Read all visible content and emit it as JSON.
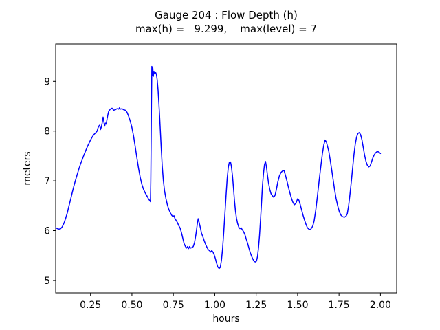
{
  "chart_data": {
    "type": "line",
    "title": "Gauge 204 : Flow Depth (h)",
    "subtitle": "max(h) =   9.299,    max(level) = 7",
    "xlabel": "hours",
    "ylabel": "meters",
    "max_h": 9.299,
    "max_level": 7,
    "line_color": "#0000ff",
    "axis_color": "#000000",
    "background": "#ffffff",
    "grid": false,
    "legend_position": "none",
    "xlim": [
      0.0396,
      2.098
    ],
    "ylim": [
      4.75,
      9.75
    ],
    "xticks": [
      0.25,
      0.5,
      0.75,
      1.0,
      1.25,
      1.5,
      1.75,
      2.0
    ],
    "xtick_labels": [
      "0.25",
      "0.50",
      "0.75",
      "1.00",
      "1.25",
      "1.50",
      "1.75",
      "2.00"
    ],
    "yticks": [
      5,
      6,
      7,
      8,
      9
    ],
    "ytick_labels": [
      "5",
      "6",
      "7",
      "8",
      "9"
    ],
    "series": [
      {
        "name": "flow-depth-h",
        "points": [
          [
            0.04,
            6.06
          ],
          [
            0.05,
            6.04
          ],
          [
            0.06,
            6.03
          ],
          [
            0.07,
            6.04
          ],
          [
            0.08,
            6.08
          ],
          [
            0.09,
            6.15
          ],
          [
            0.1,
            6.25
          ],
          [
            0.11,
            6.36
          ],
          [
            0.12,
            6.5
          ],
          [
            0.13,
            6.63
          ],
          [
            0.14,
            6.77
          ],
          [
            0.15,
            6.9
          ],
          [
            0.16,
            7.02
          ],
          [
            0.17,
            7.13
          ],
          [
            0.18,
            7.24
          ],
          [
            0.19,
            7.34
          ],
          [
            0.2,
            7.43
          ],
          [
            0.21,
            7.52
          ],
          [
            0.22,
            7.6
          ],
          [
            0.23,
            7.68
          ],
          [
            0.24,
            7.75
          ],
          [
            0.25,
            7.82
          ],
          [
            0.26,
            7.88
          ],
          [
            0.27,
            7.93
          ],
          [
            0.28,
            7.96
          ],
          [
            0.29,
            8.0
          ],
          [
            0.295,
            8.06
          ],
          [
            0.3,
            8.1
          ],
          [
            0.305,
            8.12
          ],
          [
            0.31,
            8.03
          ],
          [
            0.315,
            8.08
          ],
          [
            0.32,
            8.16
          ],
          [
            0.326,
            8.28
          ],
          [
            0.33,
            8.2
          ],
          [
            0.335,
            8.1
          ],
          [
            0.34,
            8.16
          ],
          [
            0.345,
            8.14
          ],
          [
            0.35,
            8.25
          ],
          [
            0.355,
            8.33
          ],
          [
            0.36,
            8.4
          ],
          [
            0.37,
            8.44
          ],
          [
            0.38,
            8.46
          ],
          [
            0.39,
            8.42
          ],
          [
            0.4,
            8.43
          ],
          [
            0.41,
            8.45
          ],
          [
            0.42,
            8.44
          ],
          [
            0.425,
            8.47
          ],
          [
            0.43,
            8.44
          ],
          [
            0.44,
            8.45
          ],
          [
            0.45,
            8.43
          ],
          [
            0.46,
            8.42
          ],
          [
            0.47,
            8.38
          ],
          [
            0.48,
            8.3
          ],
          [
            0.49,
            8.2
          ],
          [
            0.5,
            8.07
          ],
          [
            0.51,
            7.9
          ],
          [
            0.52,
            7.68
          ],
          [
            0.53,
            7.46
          ],
          [
            0.54,
            7.25
          ],
          [
            0.55,
            7.07
          ],
          [
            0.56,
            6.93
          ],
          [
            0.57,
            6.83
          ],
          [
            0.58,
            6.76
          ],
          [
            0.59,
            6.7
          ],
          [
            0.6,
            6.64
          ],
          [
            0.608,
            6.6
          ],
          [
            0.612,
            6.58
          ],
          [
            0.614,
            7.0
          ],
          [
            0.616,
            7.8
          ],
          [
            0.618,
            8.6
          ],
          [
            0.62,
            9.3
          ],
          [
            0.623,
            9.12
          ],
          [
            0.626,
            9.27
          ],
          [
            0.629,
            9.1
          ],
          [
            0.633,
            9.2
          ],
          [
            0.638,
            9.16
          ],
          [
            0.643,
            9.18
          ],
          [
            0.648,
            9.14
          ],
          [
            0.653,
            9.02
          ],
          [
            0.658,
            8.82
          ],
          [
            0.663,
            8.55
          ],
          [
            0.668,
            8.25
          ],
          [
            0.673,
            7.92
          ],
          [
            0.678,
            7.6
          ],
          [
            0.683,
            7.3
          ],
          [
            0.69,
            7.0
          ],
          [
            0.697,
            6.8
          ],
          [
            0.705,
            6.65
          ],
          [
            0.713,
            6.53
          ],
          [
            0.721,
            6.44
          ],
          [
            0.73,
            6.37
          ],
          [
            0.74,
            6.31
          ],
          [
            0.748,
            6.28
          ],
          [
            0.754,
            6.3
          ],
          [
            0.76,
            6.24
          ],
          [
            0.768,
            6.2
          ],
          [
            0.775,
            6.16
          ],
          [
            0.783,
            6.1
          ],
          [
            0.791,
            6.05
          ],
          [
            0.799,
            5.96
          ],
          [
            0.807,
            5.85
          ],
          [
            0.815,
            5.74
          ],
          [
            0.823,
            5.68
          ],
          [
            0.83,
            5.65
          ],
          [
            0.836,
            5.68
          ],
          [
            0.842,
            5.64
          ],
          [
            0.848,
            5.68
          ],
          [
            0.855,
            5.65
          ],
          [
            0.862,
            5.66
          ],
          [
            0.87,
            5.68
          ],
          [
            0.878,
            5.76
          ],
          [
            0.886,
            5.92
          ],
          [
            0.894,
            6.12
          ],
          [
            0.9,
            6.24
          ],
          [
            0.906,
            6.16
          ],
          [
            0.913,
            6.06
          ],
          [
            0.92,
            5.95
          ],
          [
            0.928,
            5.88
          ],
          [
            0.936,
            5.8
          ],
          [
            0.944,
            5.73
          ],
          [
            0.952,
            5.67
          ],
          [
            0.96,
            5.62
          ],
          [
            0.968,
            5.6
          ],
          [
            0.975,
            5.57
          ],
          [
            0.982,
            5.6
          ],
          [
            0.989,
            5.57
          ],
          [
            0.996,
            5.52
          ],
          [
            1.003,
            5.45
          ],
          [
            1.01,
            5.36
          ],
          [
            1.018,
            5.27
          ],
          [
            1.026,
            5.24
          ],
          [
            1.033,
            5.26
          ],
          [
            1.04,
            5.4
          ],
          [
            1.047,
            5.62
          ],
          [
            1.054,
            5.95
          ],
          [
            1.061,
            6.32
          ],
          [
            1.068,
            6.7
          ],
          [
            1.075,
            7.05
          ],
          [
            1.082,
            7.28
          ],
          [
            1.088,
            7.37
          ],
          [
            1.095,
            7.38
          ],
          [
            1.1,
            7.3
          ],
          [
            1.107,
            7.1
          ],
          [
            1.113,
            6.85
          ],
          [
            1.119,
            6.6
          ],
          [
            1.125,
            6.4
          ],
          [
            1.131,
            6.25
          ],
          [
            1.138,
            6.14
          ],
          [
            1.145,
            6.07
          ],
          [
            1.152,
            6.04
          ],
          [
            1.159,
            6.06
          ],
          [
            1.166,
            6.02
          ],
          [
            1.174,
            5.98
          ],
          [
            1.182,
            5.92
          ],
          [
            1.19,
            5.83
          ],
          [
            1.198,
            5.75
          ],
          [
            1.206,
            5.65
          ],
          [
            1.214,
            5.56
          ],
          [
            1.222,
            5.49
          ],
          [
            1.23,
            5.43
          ],
          [
            1.238,
            5.38
          ],
          [
            1.246,
            5.37
          ],
          [
            1.252,
            5.39
          ],
          [
            1.258,
            5.48
          ],
          [
            1.264,
            5.65
          ],
          [
            1.27,
            5.9
          ],
          [
            1.276,
            6.2
          ],
          [
            1.282,
            6.55
          ],
          [
            1.288,
            6.9
          ],
          [
            1.294,
            7.15
          ],
          [
            1.3,
            7.32
          ],
          [
            1.306,
            7.39
          ],
          [
            1.312,
            7.28
          ],
          [
            1.318,
            7.12
          ],
          [
            1.324,
            6.97
          ],
          [
            1.332,
            6.83
          ],
          [
            1.34,
            6.74
          ],
          [
            1.348,
            6.7
          ],
          [
            1.356,
            6.67
          ],
          [
            1.364,
            6.71
          ],
          [
            1.372,
            6.83
          ],
          [
            1.38,
            6.97
          ],
          [
            1.39,
            7.1
          ],
          [
            1.4,
            7.17
          ],
          [
            1.41,
            7.2
          ],
          [
            1.418,
            7.21
          ],
          [
            1.426,
            7.12
          ],
          [
            1.434,
            7.02
          ],
          [
            1.442,
            6.91
          ],
          [
            1.45,
            6.8
          ],
          [
            1.46,
            6.68
          ],
          [
            1.47,
            6.58
          ],
          [
            1.48,
            6.52
          ],
          [
            1.49,
            6.55
          ],
          [
            1.5,
            6.64
          ],
          [
            1.508,
            6.61
          ],
          [
            1.516,
            6.52
          ],
          [
            1.524,
            6.42
          ],
          [
            1.532,
            6.32
          ],
          [
            1.541,
            6.22
          ],
          [
            1.55,
            6.13
          ],
          [
            1.559,
            6.06
          ],
          [
            1.568,
            6.03
          ],
          [
            1.577,
            6.02
          ],
          [
            1.586,
            6.06
          ],
          [
            1.592,
            6.1
          ],
          [
            1.6,
            6.2
          ],
          [
            1.61,
            6.42
          ],
          [
            1.62,
            6.7
          ],
          [
            1.63,
            7.0
          ],
          [
            1.64,
            7.28
          ],
          [
            1.65,
            7.55
          ],
          [
            1.658,
            7.72
          ],
          [
            1.666,
            7.82
          ],
          [
            1.674,
            7.78
          ],
          [
            1.68,
            7.7
          ],
          [
            1.688,
            7.6
          ],
          [
            1.696,
            7.44
          ],
          [
            1.704,
            7.26
          ],
          [
            1.712,
            7.08
          ],
          [
            1.722,
            6.85
          ],
          [
            1.732,
            6.65
          ],
          [
            1.742,
            6.5
          ],
          [
            1.752,
            6.38
          ],
          [
            1.762,
            6.31
          ],
          [
            1.772,
            6.28
          ],
          [
            1.782,
            6.27
          ],
          [
            1.792,
            6.29
          ],
          [
            1.8,
            6.34
          ],
          [
            1.808,
            6.5
          ],
          [
            1.816,
            6.72
          ],
          [
            1.824,
            6.98
          ],
          [
            1.832,
            7.25
          ],
          [
            1.84,
            7.52
          ],
          [
            1.848,
            7.74
          ],
          [
            1.856,
            7.88
          ],
          [
            1.864,
            7.95
          ],
          [
            1.872,
            7.97
          ],
          [
            1.88,
            7.93
          ],
          [
            1.888,
            7.83
          ],
          [
            1.896,
            7.68
          ],
          [
            1.904,
            7.52
          ],
          [
            1.912,
            7.4
          ],
          [
            1.92,
            7.32
          ],
          [
            1.93,
            7.28
          ],
          [
            1.938,
            7.3
          ],
          [
            1.946,
            7.38
          ],
          [
            1.954,
            7.46
          ],
          [
            1.962,
            7.52
          ],
          [
            1.97,
            7.56
          ],
          [
            1.98,
            7.59
          ],
          [
            1.99,
            7.58
          ],
          [
            2.0,
            7.55
          ]
        ]
      }
    ]
  }
}
